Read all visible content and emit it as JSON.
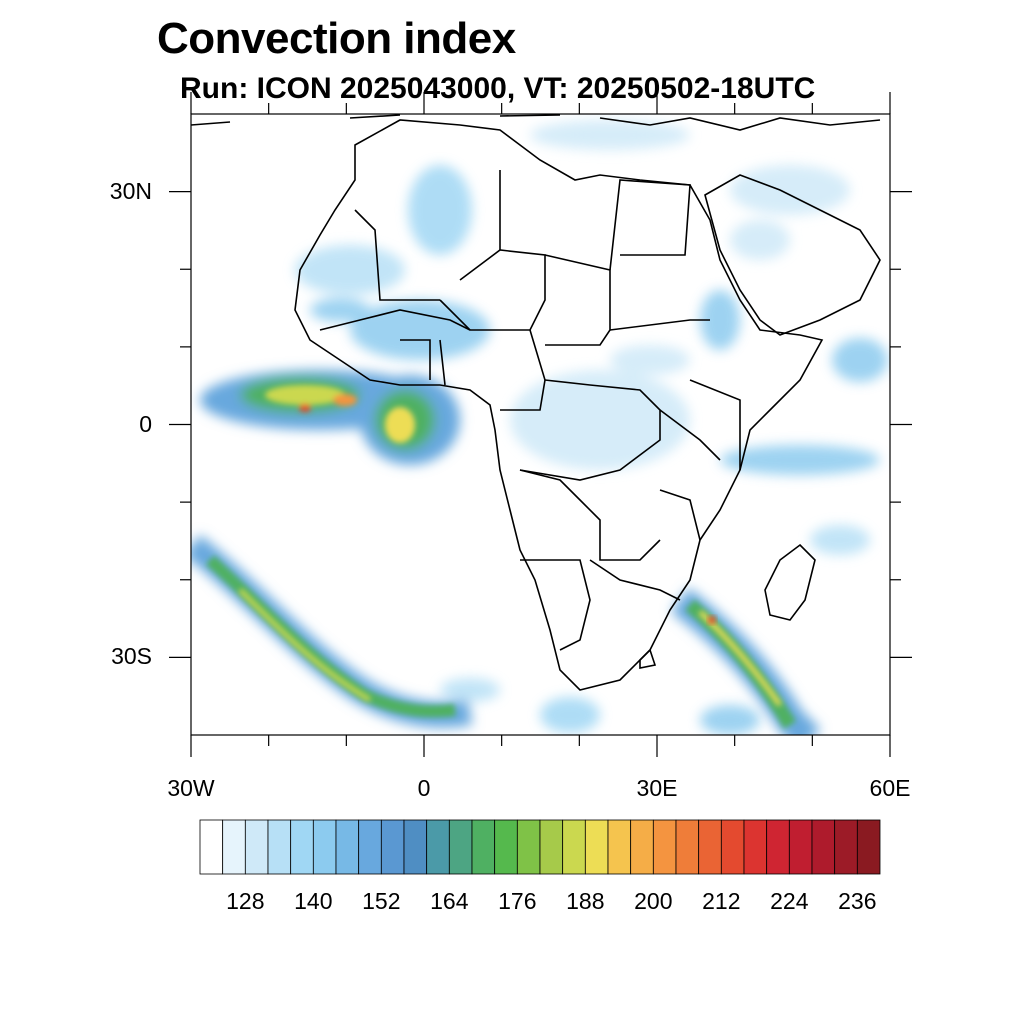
{
  "title": "Convection index",
  "subtitle": "Run: ICON 2025043000,  VT: 20250502-18UTC",
  "map": {
    "lon_range": [
      -30,
      60
    ],
    "lat_range": [
      -40,
      40
    ],
    "lat_labels": [
      {
        "lat": 30,
        "text": "30N"
      },
      {
        "lat": 0,
        "text": "0"
      },
      {
        "lat": -30,
        "text": "30S"
      }
    ],
    "lon_labels": [
      {
        "lon": -30,
        "text": "30W"
      },
      {
        "lon": 0,
        "text": "0"
      },
      {
        "lon": 30,
        "text": "30E"
      },
      {
        "lon": 60,
        "text": "60E"
      }
    ],
    "coastline_color": "#000000"
  },
  "colorbar": {
    "colors": [
      "#ffffff",
      "#e6f4fc",
      "#cfe9f8",
      "#b7e0f6",
      "#a0d7f4",
      "#8ccbef",
      "#77b9e6",
      "#68a8de",
      "#5a98d2",
      "#4f8ec3",
      "#4b9aa8",
      "#4da583",
      "#4fb062",
      "#55b94d",
      "#7fc247",
      "#a6ca4a",
      "#cbd84f",
      "#eddd55",
      "#f5c44e",
      "#f5ad47",
      "#f49440",
      "#ef7d39",
      "#ea6434",
      "#e44a2f",
      "#dc3430",
      "#cf2532",
      "#c01e30",
      "#ae1b2c",
      "#9c1b27",
      "#8a1a21"
    ],
    "tick_labels": [
      "128",
      "140",
      "152",
      "164",
      "176",
      "188",
      "200",
      "212",
      "224",
      "236"
    ]
  },
  "chart_data": {
    "type": "heatmap",
    "title": "Convection index",
    "subtitle": "Run: ICON 2025043000,  VT: 20250502-18UTC",
    "lon_range": [
      -30,
      60
    ],
    "lat_range": [
      -40,
      40
    ],
    "colorbar_ticks": [
      128,
      140,
      152,
      164,
      176,
      188,
      200,
      212,
      224,
      236
    ],
    "regions": [
      {
        "lon": -20,
        "lat": 4,
        "peak": 200
      },
      {
        "lon": -10,
        "lat": 3,
        "peak": 224
      },
      {
        "lon": -3,
        "lat": 1,
        "peak": 200
      },
      {
        "lon": 0,
        "lat": -2,
        "peak": 190
      },
      {
        "lon": -15,
        "lat": -33,
        "peak": 190
      },
      {
        "lon": 40,
        "lat": -32,
        "peak": 212
      }
    ]
  }
}
